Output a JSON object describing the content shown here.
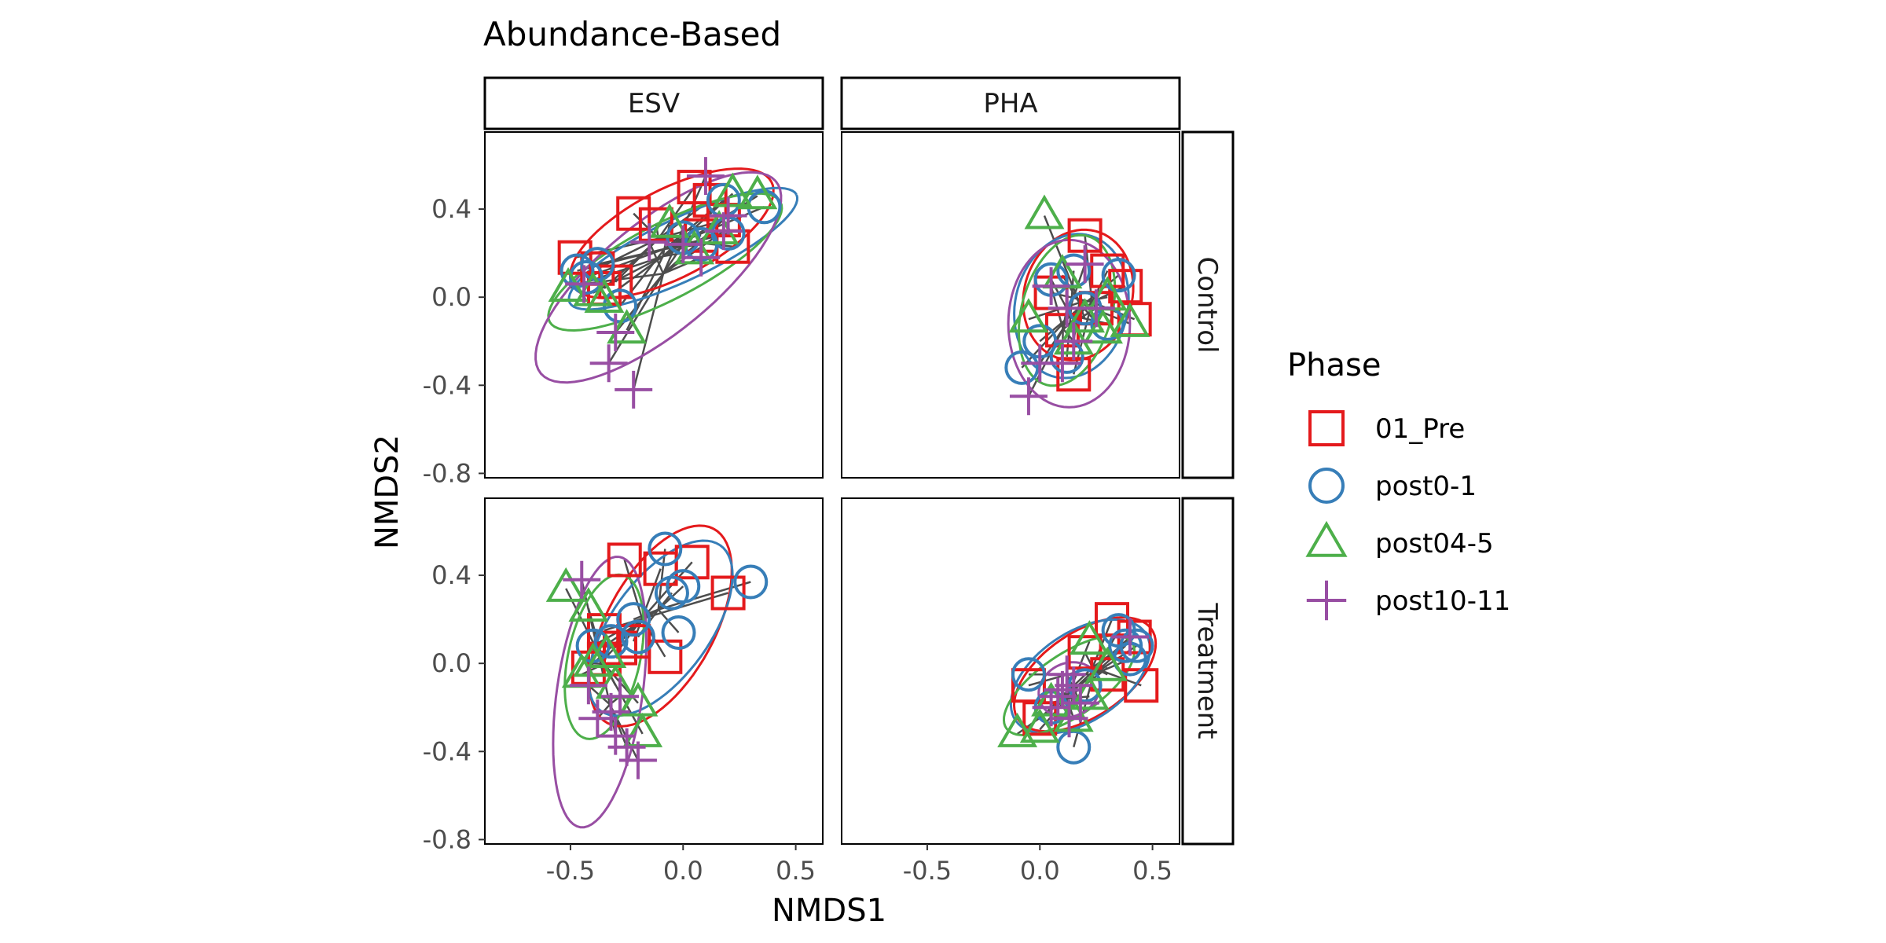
{
  "chart_data": {
    "type": "scatter",
    "title": "Abundance-Based",
    "xlabel": "NMDS1",
    "ylabel": "NMDS2",
    "xlim": [
      -0.88,
      0.62
    ],
    "ylim": [
      -0.82,
      0.75
    ],
    "x_ticks": [
      -0.5,
      0.0,
      0.5
    ],
    "x_tick_labels": [
      "-0.5",
      "0.0",
      "0.5"
    ],
    "y_ticks": [
      -0.8,
      -0.4,
      0.0,
      0.4
    ],
    "y_tick_labels": [
      "-0.8",
      "-0.4",
      "0.0",
      "0.4"
    ],
    "grid": false,
    "legend": {
      "title": "Phase",
      "position": "right",
      "entries": [
        {
          "name": "01_Pre",
          "color": "#E41A1C",
          "shape": "square"
        },
        {
          "name": "post0-1",
          "color": "#377EB8",
          "shape": "circle"
        },
        {
          "name": "post04-5",
          "color": "#4DAF4A",
          "shape": "triangle"
        },
        {
          "name": "post10-11",
          "color": "#984EA3",
          "shape": "cross"
        }
      ]
    },
    "facet_columns": [
      "ESV",
      "PHA"
    ],
    "facet_rows": [
      "Control",
      "Treatment"
    ],
    "panels": [
      {
        "column": "ESV",
        "row": "Control",
        "series": [
          {
            "name": "01_Pre",
            "points": [
              [
                -0.48,
                0.18
              ],
              [
                -0.38,
                0.13
              ],
              [
                -0.3,
                0.07
              ],
              [
                -0.22,
                0.38
              ],
              [
                -0.12,
                0.33
              ],
              [
                0.05,
                0.5
              ],
              [
                0.08,
                0.28
              ],
              [
                0.18,
                0.35
              ],
              [
                0.12,
                0.44
              ],
              [
                0.22,
                0.23
              ],
              [
                -0.35,
                0.04
              ]
            ]
          },
          {
            "name": "post0-1",
            "points": [
              [
                -0.47,
                0.12
              ],
              [
                -0.38,
                0.15
              ],
              [
                -0.28,
                -0.04
              ],
              [
                0.0,
                0.27
              ],
              [
                0.08,
                0.24
              ],
              [
                0.2,
                0.29
              ],
              [
                0.36,
                0.41
              ],
              [
                0.18,
                0.44
              ],
              [
                -0.43,
                0.09
              ]
            ]
          },
          {
            "name": "post04-5",
            "points": [
              [
                -0.51,
                0.04
              ],
              [
                -0.4,
                0.02
              ],
              [
                -0.25,
                -0.15
              ],
              [
                -0.06,
                0.33
              ],
              [
                0.05,
                0.21
              ],
              [
                0.16,
                0.3
              ],
              [
                0.22,
                0.47
              ],
              [
                0.33,
                0.46
              ],
              [
                -0.35,
                -0.01
              ]
            ]
          },
          {
            "name": "post10-11",
            "points": [
              [
                -0.44,
                0.06
              ],
              [
                -0.3,
                -0.16
              ],
              [
                -0.33,
                -0.3
              ],
              [
                -0.22,
                -0.42
              ],
              [
                -0.15,
                0.25
              ],
              [
                0.0,
                0.24
              ],
              [
                0.08,
                0.18
              ],
              [
                0.1,
                0.55
              ],
              [
                0.18,
                0.3
              ],
              [
                0.2,
                0.37
              ]
            ]
          }
        ],
        "ellipses": [
          {
            "name": "01_Pre",
            "cx": -0.05,
            "cy": 0.29,
            "rx": 0.5,
            "ry": 0.2,
            "angle": 28
          },
          {
            "name": "post0-1",
            "cx": 0.0,
            "cy": 0.22,
            "rx": 0.56,
            "ry": 0.14,
            "angle": 26
          },
          {
            "name": "post04-5",
            "cx": -0.08,
            "cy": 0.16,
            "rx": 0.58,
            "ry": 0.17,
            "angle": 28
          },
          {
            "name": "post10-11",
            "cx": -0.11,
            "cy": 0.09,
            "rx": 0.68,
            "ry": 0.25,
            "angle": 40
          }
        ]
      },
      {
        "column": "PHA",
        "row": "Control",
        "series": [
          {
            "name": "01_Pre",
            "points": [
              [
                0.2,
                0.28
              ],
              [
                0.3,
                0.12
              ],
              [
                0.38,
                0.05
              ],
              [
                0.42,
                -0.1
              ],
              [
                0.1,
                -0.15
              ],
              [
                0.25,
                -0.05
              ],
              [
                0.05,
                0.02
              ],
              [
                0.15,
                -0.35
              ]
            ]
          },
          {
            "name": "post0-1",
            "points": [
              [
                0.15,
                0.12
              ],
              [
                0.05,
                0.08
              ],
              [
                0.2,
                -0.05
              ],
              [
                0.0,
                -0.2
              ],
              [
                -0.08,
                -0.32
              ],
              [
                0.3,
                -0.12
              ],
              [
                0.35,
                0.1
              ],
              [
                0.12,
                -0.27
              ]
            ]
          },
          {
            "name": "post04-5",
            "points": [
              [
                0.02,
                0.37
              ],
              [
                0.1,
                0.1
              ],
              [
                0.2,
                -0.1
              ],
              [
                0.4,
                -0.12
              ],
              [
                -0.05,
                -0.1
              ],
              [
                0.15,
                -0.2
              ],
              [
                0.3,
                0.0
              ],
              [
                0.28,
                -0.15
              ]
            ]
          },
          {
            "name": "post10-11",
            "points": [
              [
                -0.05,
                -0.45
              ],
              [
                0.0,
                -0.3
              ],
              [
                0.1,
                -0.3
              ],
              [
                0.15,
                -0.2
              ],
              [
                0.05,
                0.05
              ],
              [
                0.2,
                0.15
              ],
              [
                0.25,
                -0.05
              ],
              [
                0.12,
                -0.05
              ]
            ]
          }
        ],
        "ellipses": [
          {
            "name": "01_Pre",
            "cx": 0.17,
            "cy": 0.01,
            "rx": 0.3,
            "ry": 0.24,
            "angle": 75
          },
          {
            "name": "post0-1",
            "cx": 0.14,
            "cy": -0.04,
            "rx": 0.33,
            "ry": 0.25,
            "angle": 78
          },
          {
            "name": "post04-5",
            "cx": 0.12,
            "cy": -0.06,
            "rx": 0.35,
            "ry": 0.2,
            "angle": 75
          },
          {
            "name": "post10-11",
            "cx": 0.13,
            "cy": -0.12,
            "rx": 0.38,
            "ry": 0.27,
            "angle": 90
          }
        ]
      },
      {
        "column": "ESV",
        "row": "Treatment",
        "series": [
          {
            "name": "01_Pre",
            "points": [
              [
                -0.26,
                0.47
              ],
              [
                -0.1,
                0.43
              ],
              [
                0.04,
                0.46
              ],
              [
                -0.35,
                0.15
              ],
              [
                -0.28,
                0.07
              ],
              [
                -0.35,
                0.02
              ],
              [
                -0.22,
                0.1
              ],
              [
                -0.08,
                0.03
              ],
              [
                0.2,
                0.32
              ],
              [
                -0.42,
                -0.02
              ]
            ]
          },
          {
            "name": "post0-1",
            "points": [
              [
                -0.08,
                0.52
              ],
              [
                0.0,
                0.35
              ],
              [
                -0.05,
                0.32
              ],
              [
                -0.02,
                0.14
              ],
              [
                -0.22,
                0.2
              ],
              [
                -0.2,
                0.12
              ],
              [
                -0.4,
                0.08
              ],
              [
                -0.32,
                0.1
              ],
              [
                0.3,
                0.37
              ]
            ]
          },
          {
            "name": "post04-5",
            "points": [
              [
                -0.52,
                0.34
              ],
              [
                -0.42,
                0.25
              ],
              [
                -0.4,
                0.0
              ],
              [
                -0.45,
                -0.05
              ],
              [
                -0.3,
                -0.1
              ],
              [
                -0.2,
                -0.18
              ],
              [
                -0.18,
                -0.32
              ],
              [
                -0.34,
                0.04
              ]
            ]
          },
          {
            "name": "post10-11",
            "points": [
              [
                -0.45,
                0.38
              ],
              [
                -0.42,
                -0.1
              ],
              [
                -0.38,
                -0.25
              ],
              [
                -0.3,
                -0.33
              ],
              [
                -0.25,
                -0.38
              ],
              [
                -0.2,
                -0.44
              ],
              [
                -0.32,
                -0.22
              ],
              [
                -0.28,
                -0.15
              ]
            ]
          }
        ],
        "ellipses": [
          {
            "name": "01_Pre",
            "cx": -0.1,
            "cy": 0.17,
            "rx": 0.5,
            "ry": 0.24,
            "angle": 62
          },
          {
            "name": "post0-1",
            "cx": -0.1,
            "cy": 0.16,
            "rx": 0.46,
            "ry": 0.22,
            "angle": 55
          },
          {
            "name": "post04-5",
            "cx": -0.35,
            "cy": 0.03,
            "rx": 0.38,
            "ry": 0.16,
            "angle": 78
          },
          {
            "name": "post10-11",
            "cx": -0.37,
            "cy": -0.13,
            "rx": 0.62,
            "ry": 0.19,
            "angle": 82
          }
        ]
      },
      {
        "column": "PHA",
        "row": "Treatment",
        "series": [
          {
            "name": "01_Pre",
            "points": [
              [
                0.32,
                0.2
              ],
              [
                0.42,
                0.12
              ],
              [
                0.45,
                -0.1
              ],
              [
                -0.05,
                -0.1
              ],
              [
                0.0,
                -0.25
              ],
              [
                0.2,
                0.05
              ],
              [
                0.3,
                -0.05
              ]
            ]
          },
          {
            "name": "post0-1",
            "points": [
              [
                0.35,
                0.15
              ],
              [
                0.38,
                0.08
              ],
              [
                0.43,
                0.08
              ],
              [
                0.15,
                -0.38
              ],
              [
                -0.05,
                -0.05
              ],
              [
                0.05,
                -0.2
              ],
              [
                0.2,
                -0.1
              ],
              [
                0.4,
                0.02
              ]
            ]
          },
          {
            "name": "post04-5",
            "points": [
              [
                0.22,
                0.1
              ],
              [
                -0.1,
                -0.32
              ],
              [
                0.0,
                -0.3
              ],
              [
                0.15,
                -0.25
              ],
              [
                0.22,
                -0.15
              ],
              [
                0.3,
                -0.02
              ],
              [
                0.05,
                -0.18
              ]
            ]
          },
          {
            "name": "post10-11",
            "points": [
              [
                0.4,
                0.12
              ],
              [
                0.1,
                -0.12
              ],
              [
                0.15,
                -0.1
              ],
              [
                0.08,
                -0.15
              ],
              [
                0.13,
                -0.25
              ],
              [
                0.05,
                -0.2
              ],
              [
                0.18,
                -0.18
              ],
              [
                0.12,
                -0.05
              ]
            ]
          }
        ],
        "ellipses": [
          {
            "name": "01_Pre",
            "cx": 0.2,
            "cy": -0.05,
            "rx": 0.36,
            "ry": 0.19,
            "angle": 35
          },
          {
            "name": "post0-1",
            "cx": 0.18,
            "cy": -0.06,
            "rx": 0.35,
            "ry": 0.2,
            "angle": 35
          },
          {
            "name": "post04-5",
            "cx": 0.13,
            "cy": -0.1,
            "rx": 0.34,
            "ry": 0.14,
            "angle": 35
          },
          {
            "name": "post10-11",
            "cx": 0.13,
            "cy": -0.12,
            "rx": 0.14,
            "ry": 0.12,
            "angle": 30
          }
        ]
      }
    ]
  }
}
